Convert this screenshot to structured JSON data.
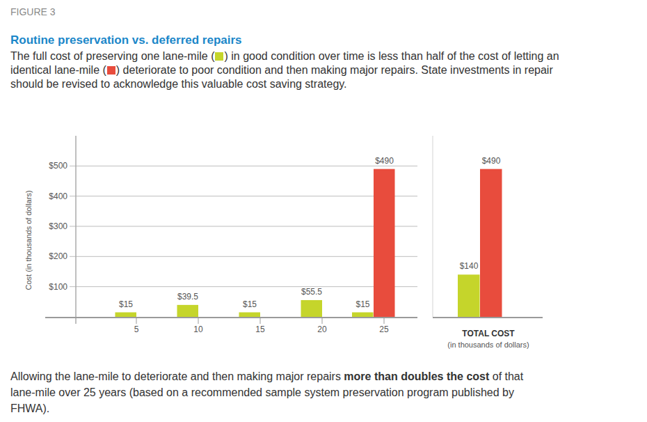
{
  "figure_label": "FIGURE 3",
  "title": "Routine preservation vs. deferred repairs",
  "subtitle": [
    "The full cost of preserving one lane-mile (",
    ") in good condition over time is less than half of the cost of letting an identical lane-mile (",
    ") deteriorate to poor condition and then making major repairs. State investments in repair should be revised to acknowledge this valuable cost saving strategy."
  ],
  "footer": {
    "before": "Allowing the lane-mile to deteriorate and then making major repairs ",
    "emphasis": "more than doubles the cost",
    "after": " of that lane-mile over 25 years (based on a recommended sample system preservation program published by FHWA)."
  },
  "chart_data": [
    {
      "type": "bar",
      "categories": [
        "5",
        "10",
        "15",
        "20",
        "25"
      ],
      "ylabel": "Cost (in thousands of dollars)",
      "series": [
        {
          "color": "#c5d52b",
          "values": [
            15,
            39.5,
            15,
            55.5,
            15
          ],
          "value_labels": [
            "$15",
            "$39.5",
            "$15",
            "$55.5",
            "$15"
          ]
        },
        {
          "color": "#e84c3d",
          "values": [
            null,
            null,
            null,
            null,
            490
          ],
          "value_labels": [
            null,
            null,
            null,
            null,
            "$490"
          ]
        }
      ],
      "ylim": [
        0,
        600
      ],
      "yticks": [
        {
          "value": 100,
          "label": "$100"
        },
        {
          "value": 200,
          "label": "$200"
        },
        {
          "value": 300,
          "label": "$300"
        },
        {
          "value": 400,
          "label": "$400"
        },
        {
          "value": 500,
          "label": "$500"
        }
      ],
      "grid": true,
      "data_labels": true
    },
    {
      "type": "bar",
      "categories": [
        "TOTAL COST"
      ],
      "xlabel": "(in thousands of dollars)",
      "series": [
        {
          "color": "#c5d52b",
          "values": [
            140
          ],
          "value_labels": [
            "$140"
          ]
        },
        {
          "color": "#e84c3d",
          "values": [
            490
          ],
          "value_labels": [
            "$490"
          ]
        }
      ],
      "ylim": [
        0,
        600
      ],
      "grid": false,
      "data_labels": true,
      "tick_labels": "x"
    }
  ]
}
